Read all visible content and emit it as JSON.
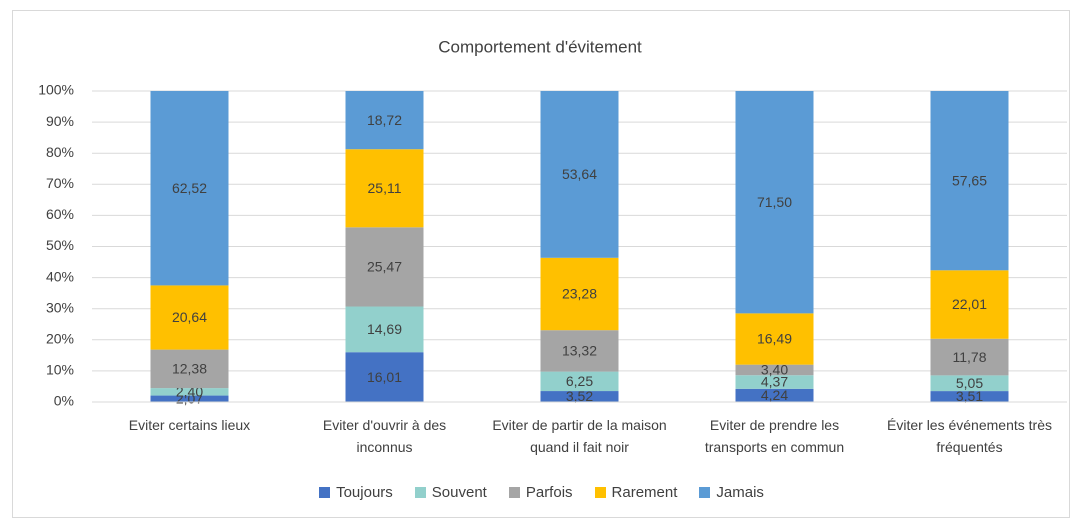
{
  "chart_data": {
    "type": "stacked_bar_100",
    "title": "Comportement d'évitement",
    "categories": [
      "Eviter certains lieux",
      "Eviter d'ouvrir à des inconnus",
      "Eviter de partir de la maison quand il fait noir",
      "Eviter de prendre les transports en commun",
      "Éviter les événements très fréquentés"
    ],
    "series": [
      {
        "name": "Toujours",
        "color": "#4472c4",
        "values": [
          2.07,
          16.01,
          3.52,
          4.24,
          3.51
        ],
        "value_labels": [
          "2,07",
          "16,01",
          "3,52",
          "4,24",
          "3,51"
        ]
      },
      {
        "name": "Souvent",
        "color": "#92d0cc",
        "values": [
          2.4,
          14.69,
          6.25,
          4.37,
          5.05
        ],
        "value_labels": [
          "2,40",
          "14,69",
          "6,25",
          "4,37",
          "5,05"
        ]
      },
      {
        "name": "Parfois",
        "color": "#a5a5a5",
        "values": [
          12.38,
          25.47,
          13.32,
          3.4,
          11.78
        ],
        "value_labels": [
          "12,38",
          "25,47",
          "13,32",
          "3,40",
          "11,78"
        ]
      },
      {
        "name": "Rarement",
        "color": "#ffc000",
        "values": [
          20.64,
          25.11,
          23.28,
          16.49,
          22.01
        ],
        "value_labels": [
          "20,64",
          "25,11",
          "23,28",
          "16,49",
          "22,01"
        ]
      },
      {
        "name": "Jamais",
        "color": "#5b9bd5",
        "values": [
          62.52,
          18.72,
          53.64,
          71.5,
          57.65
        ],
        "value_labels": [
          "62,52",
          "18,72",
          "53,64",
          "71,50",
          "57,65"
        ]
      }
    ],
    "ylim": [
      0,
      100
    ],
    "yticks": [
      {
        "value": 0,
        "label": "0%"
      },
      {
        "value": 10,
        "label": "10%"
      },
      {
        "value": 20,
        "label": "20%"
      },
      {
        "value": 30,
        "label": "30%"
      },
      {
        "value": 40,
        "label": "40%"
      },
      {
        "value": 50,
        "label": "50%"
      },
      {
        "value": 60,
        "label": "60%"
      },
      {
        "value": 70,
        "label": "70%"
      },
      {
        "value": 80,
        "label": "80%"
      },
      {
        "value": 90,
        "label": "90%"
      },
      {
        "value": 100,
        "label": "100%"
      }
    ],
    "grid": true,
    "legend": "bottom"
  }
}
